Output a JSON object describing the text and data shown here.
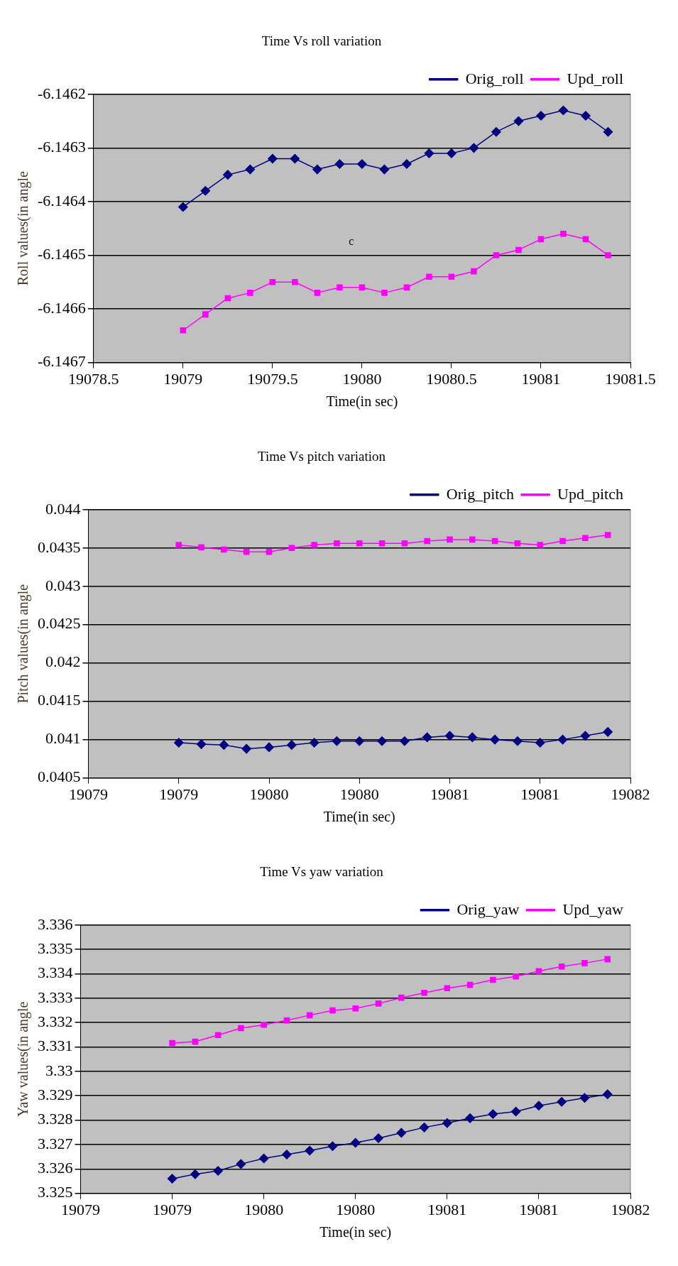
{
  "chart_data": [
    {
      "type": "line",
      "title": "Time Vs roll variation",
      "xlabel": "Time(in sec)",
      "ylabel": "Roll values(in angle",
      "legend": "top right",
      "grid": "y",
      "line_style": "solid",
      "x": [
        19079,
        19079.125,
        19079.25,
        19079.375,
        19079.5,
        19079.625,
        19079.75,
        19079.875,
        19080,
        19080.125,
        19080.25,
        19080.375,
        19080.5,
        19080.625,
        19080.75,
        19080.875,
        19081,
        19081.125,
        19081.25,
        19081.375
      ],
      "xlim": [
        19078.5,
        19081.5
      ],
      "xticks": [
        19078.5,
        19079,
        19079.5,
        19080,
        19080.5,
        19081,
        19081.5
      ],
      "ylim": [
        -6.1467,
        -6.1462
      ],
      "yticks": [
        -6.1467,
        -6.1466,
        -6.1465,
        -6.1464,
        -6.1463,
        -6.1462
      ],
      "series": [
        {
          "name": "Orig_roll",
          "color": "#000080",
          "marker": "diamond",
          "values": [
            -6.14641,
            -6.14638,
            -6.14635,
            -6.14634,
            -6.14632,
            -6.14632,
            -6.14634,
            -6.14633,
            -6.14633,
            -6.14634,
            -6.14633,
            -6.14631,
            -6.14631,
            -6.1463,
            -6.14627,
            -6.14625,
            -6.14624,
            -6.14623,
            -6.14624,
            -6.14627
          ]
        },
        {
          "name": "Upd_roll",
          "color": "#ff00ff",
          "marker": "square",
          "values": [
            -6.14664,
            -6.14661,
            -6.14658,
            -6.14657,
            -6.14655,
            -6.14655,
            -6.14657,
            -6.14656,
            -6.14656,
            -6.14657,
            -6.14656,
            -6.14654,
            -6.14654,
            -6.14653,
            -6.1465,
            -6.14649,
            -6.14647,
            -6.14646,
            -6.14647,
            -6.1465
          ]
        }
      ],
      "annotations": [
        "c"
      ]
    },
    {
      "type": "line",
      "title": "Time Vs pitch variation",
      "xlabel": "Time(in sec)",
      "ylabel": "Pitch values(in angle",
      "legend": "top right",
      "grid": "y",
      "line_style": "solid",
      "x": [
        19079,
        19079.125,
        19079.25,
        19079.375,
        19079.5,
        19079.625,
        19079.75,
        19079.875,
        19080,
        19080.125,
        19080.25,
        19080.375,
        19080.5,
        19080.625,
        19080.75,
        19080.875,
        19081,
        19081.125,
        19081.25,
        19081.375
      ],
      "xlim": [
        19078.5,
        19081.5
      ],
      "xticks": [
        {
          "value": 19078.5,
          "label": "19079"
        },
        {
          "value": 19079,
          "label": "19079"
        },
        {
          "value": 19079.5,
          "label": "19080"
        },
        {
          "value": 19080,
          "label": "19080"
        },
        {
          "value": 19080.5,
          "label": "19081"
        },
        {
          "value": 19081,
          "label": "19081"
        },
        {
          "value": 19081.5,
          "label": "19082"
        }
      ],
      "ylim": [
        0.0405,
        0.044
      ],
      "yticks": [
        0.0405,
        0.041,
        0.0415,
        0.042,
        0.0425,
        0.043,
        0.0435,
        0.044
      ],
      "series": [
        {
          "name": "Orig_pitch",
          "color": "#000080",
          "marker": "diamond",
          "values": [
            0.04096,
            0.04094,
            0.04093,
            0.04088,
            0.0409,
            0.04093,
            0.04096,
            0.04098,
            0.04098,
            0.04098,
            0.04098,
            0.04103,
            0.04105,
            0.04103,
            0.041,
            0.04098,
            0.04096,
            0.041,
            0.04105,
            0.0411
          ]
        },
        {
          "name": "Upd_pitch",
          "color": "#ff00ff",
          "marker": "square",
          "values": [
            0.04354,
            0.04351,
            0.04348,
            0.04345,
            0.04345,
            0.0435,
            0.04354,
            0.04356,
            0.04356,
            0.04356,
            0.04356,
            0.04359,
            0.04361,
            0.04361,
            0.04359,
            0.04356,
            0.04354,
            0.04359,
            0.04363,
            0.04367
          ]
        }
      ]
    },
    {
      "type": "line",
      "title": "Time Vs yaw variation",
      "xlabel": "Time(in sec)",
      "ylabel": "Yaw values(in angle",
      "legend": "top right",
      "grid": "y",
      "line_style": "solid",
      "x": [
        19079,
        19079.125,
        19079.25,
        19079.375,
        19079.5,
        19079.625,
        19079.75,
        19079.875,
        19080,
        19080.125,
        19080.25,
        19080.375,
        19080.5,
        19080.625,
        19080.75,
        19080.875,
        19081,
        19081.125,
        19081.25,
        19081.375
      ],
      "xlim": [
        19078.5,
        19081.5
      ],
      "xticks": [
        {
          "value": 19078.5,
          "label": "19079"
        },
        {
          "value": 19079,
          "label": "19079"
        },
        {
          "value": 19079.5,
          "label": "19080"
        },
        {
          "value": 19080,
          "label": "19080"
        },
        {
          "value": 19080.5,
          "label": "19081"
        },
        {
          "value": 19081,
          "label": "19081"
        },
        {
          "value": 19081.5,
          "label": "19082"
        }
      ],
      "ylim": [
        3.325,
        3.336
      ],
      "yticks": [
        3.325,
        3.326,
        3.327,
        3.328,
        3.329,
        3.33,
        3.331,
        3.332,
        3.333,
        3.334,
        3.335,
        3.336
      ],
      "series": [
        {
          "name": "Orig_yaw",
          "color": "#000080",
          "marker": "diamond",
          "values": [
            3.3256,
            3.32578,
            3.32592,
            3.3262,
            3.32643,
            3.32659,
            3.32675,
            3.32693,
            3.32707,
            3.32726,
            3.32748,
            3.3277,
            3.32788,
            3.32808,
            3.32825,
            3.32835,
            3.32859,
            3.32875,
            3.32891,
            3.32906
          ]
        },
        {
          "name": "Upd_yaw",
          "color": "#ff00ff",
          "marker": "square",
          "values": [
            3.33116,
            3.33122,
            3.33149,
            3.33177,
            3.33191,
            3.33209,
            3.3323,
            3.3325,
            3.33258,
            3.33278,
            3.33302,
            3.33322,
            3.33341,
            3.33355,
            3.33375,
            3.33389,
            3.33411,
            3.3343,
            3.33444,
            3.3346
          ]
        }
      ]
    }
  ]
}
